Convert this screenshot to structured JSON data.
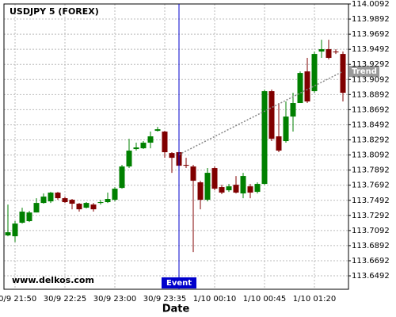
{
  "chart_data": {
    "type": "candlestick",
    "title": "USDJPY 5 (FOREX)",
    "watermark": "www.delkos.com",
    "xlabel": "Date",
    "categories": [
      null,
      "30/9 21:50",
      null,
      null,
      null,
      null,
      null,
      null,
      "30/9 22:25",
      null,
      null,
      null,
      null,
      null,
      null,
      "30/9 23:00",
      null,
      null,
      null,
      null,
      null,
      null,
      "30/9 23:35",
      null,
      null,
      null,
      null,
      null,
      null,
      "1/10 00:10",
      null,
      null,
      null,
      null,
      null,
      null,
      "1/10 00:45",
      null,
      null,
      null,
      null,
      null,
      null,
      "1/10 01:20",
      null,
      null,
      null,
      null
    ],
    "open": [
      113.7027,
      113.7016,
      113.7195,
      113.7216,
      113.7331,
      113.7457,
      113.7478,
      113.7594,
      113.752,
      113.7499,
      113.7447,
      113.7394,
      113.7436,
      113.7457,
      113.7468,
      113.7499,
      113.7656,
      113.794,
      113.8171,
      113.8181,
      113.8255,
      113.8412,
      113.8402,
      113.8118,
      113.8129,
      113.7961,
      113.794,
      113.773,
      113.7499,
      113.7919,
      113.7667,
      113.7625,
      113.7698,
      113.7583,
      113.7677,
      113.7604,
      113.7709,
      113.8937,
      113.8339,
      113.8276,
      113.8601,
      113.878,
      113.9199,
      113.8937,
      113.9462,
      113.9493,
      113.9462,
      113.943
    ],
    "high": [
      113.7436,
      113.7216,
      113.7394,
      113.7352,
      113.752,
      113.7583,
      113.7604,
      113.7604,
      113.7541,
      113.751,
      113.7457,
      113.7468,
      113.7457,
      113.7499,
      113.7594,
      113.7667,
      113.7961,
      113.8307,
      113.8255,
      113.8276,
      113.8402,
      113.8464,
      113.8412,
      113.8129,
      113.815,
      113.8055,
      113.7961,
      113.7751,
      113.7919,
      113.794,
      113.7698,
      113.7709,
      113.7814,
      113.7856,
      113.7709,
      113.773,
      113.8958,
      113.8958,
      113.878,
      113.8801,
      113.8916,
      113.9199,
      113.9378,
      113.9462,
      113.9619,
      113.9619,
      113.9493,
      113.9462
    ],
    "low": [
      113.7016,
      113.694,
      113.7184,
      113.7205,
      113.7331,
      113.7447,
      113.7457,
      113.7499,
      113.7457,
      113.7373,
      113.7342,
      113.7384,
      113.7342,
      113.7436,
      113.7457,
      113.7478,
      113.7646,
      113.7919,
      113.815,
      113.8171,
      113.8181,
      113.8402,
      113.8055,
      113.7856,
      113.794,
      113.7919,
      113.6806,
      113.7373,
      113.7478,
      113.7625,
      113.7573,
      113.7604,
      113.7583,
      113.752,
      113.752,
      113.7583,
      113.7698,
      113.8276,
      113.8129,
      113.8255,
      113.8402,
      113.878,
      113.878,
      113.8916,
      113.9378,
      113.9357,
      113.943,
      113.8801
    ],
    "close": [
      113.7069,
      113.7184,
      113.7342,
      113.7331,
      113.7457,
      113.7541,
      113.7594,
      113.752,
      113.7468,
      113.7447,
      113.7373,
      113.7457,
      113.7373,
      113.7468,
      113.751,
      113.7646,
      113.794,
      113.815,
      113.8192,
      113.8255,
      113.8339,
      113.8433,
      113.8129,
      113.8055,
      113.795,
      113.795,
      113.7751,
      113.7499,
      113.7856,
      113.7646,
      113.7594,
      113.7677,
      113.7594,
      113.7814,
      113.7594,
      113.7709,
      113.8937,
      113.8307,
      113.815,
      113.8601,
      113.878,
      113.9178,
      113.8801,
      113.943,
      113.9493,
      113.9378,
      113.9451,
      113.8916
    ],
    "up_color": "#008000",
    "down_color": "#800000",
    "ylim": [
      113.6314,
      114.0092
    ],
    "yticks": [
      113.6492,
      113.6692,
      113.6892,
      113.7092,
      113.7292,
      113.7492,
      113.7692,
      113.7892,
      113.8092,
      113.8292,
      113.8492,
      113.8692,
      113.8892,
      113.9092,
      113.9292,
      113.9492,
      113.9692,
      113.9892,
      114.0092
    ],
    "grid": true,
    "event": {
      "label": "Event",
      "index": 24,
      "color": "#0000cc"
    },
    "trend": {
      "label": "Trend",
      "start_index": 24,
      "start_value": 113.8097,
      "end_index": 47,
      "end_value": 113.9199,
      "color": "#888888"
    }
  }
}
